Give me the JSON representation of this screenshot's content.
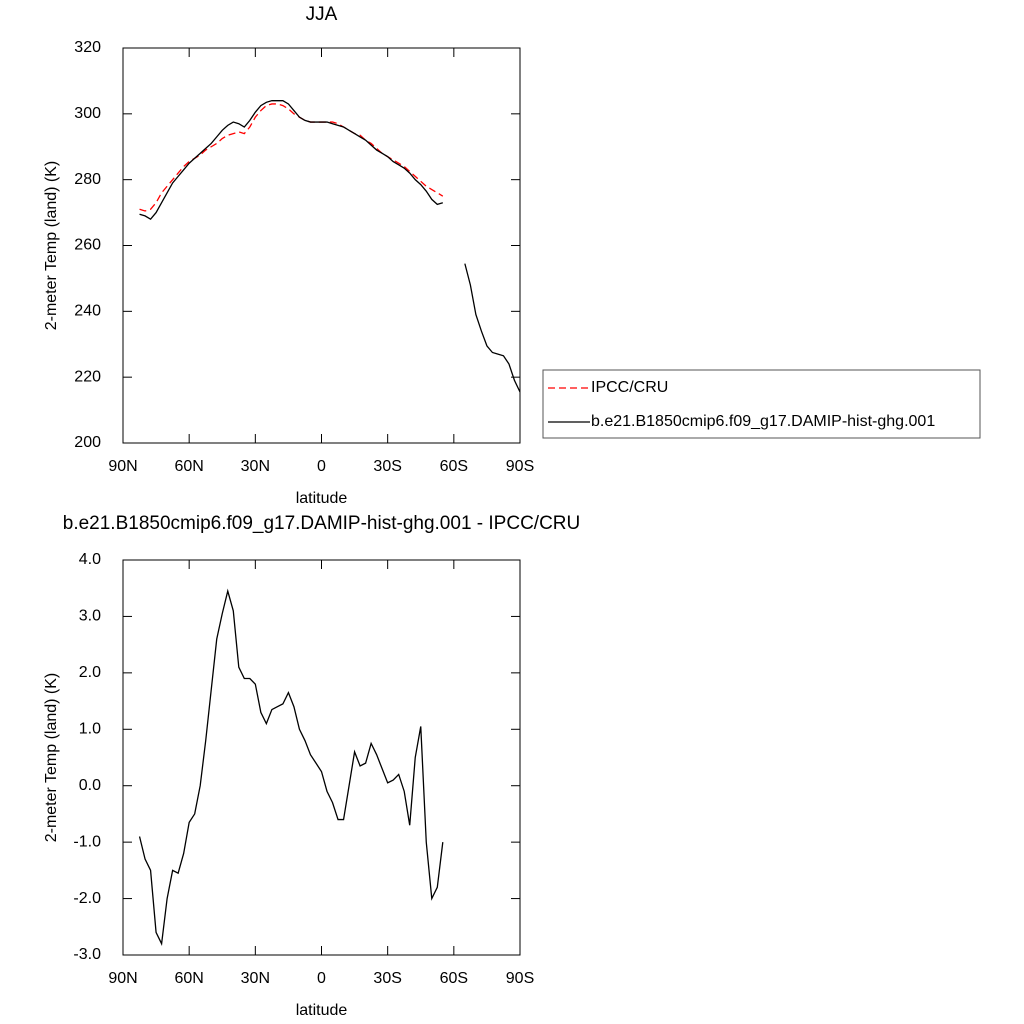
{
  "chart_data": [
    {
      "type": "line",
      "title": "JJA",
      "x_label": "latitude",
      "y_label": "2-meter Temp (land) (K)",
      "x": [
        82.5,
        80,
        77.5,
        75,
        72.5,
        70,
        67.5,
        65,
        62.5,
        60,
        57.5,
        55,
        52.5,
        50,
        47.5,
        45,
        42.5,
        40,
        37.5,
        35,
        32.5,
        30,
        27.5,
        25,
        22.5,
        20,
        17.5,
        15,
        12.5,
        10,
        7.5,
        5,
        2.5,
        0,
        -2.5,
        -5,
        -7.5,
        -10,
        -12.5,
        -15,
        -17.5,
        -20,
        -22.5,
        -25,
        -27.5,
        -30,
        -32.5,
        -35,
        -37.5,
        -40,
        -42.5,
        -45,
        -47.5,
        -50,
        -52.5,
        -55,
        -57.5,
        -60,
        -62.5,
        -65,
        -67.5,
        -70,
        -72.5,
        -75,
        -77.5,
        -80,
        -82.5,
        -85,
        -87.5,
        -90
      ],
      "series": [
        {
          "name": "IPCC/CRU",
          "color": "#ff0000",
          "style": "dashed",
          "values": [
            271,
            270.5,
            271,
            273,
            276,
            278,
            280,
            282,
            284,
            285.5,
            286.5,
            287.5,
            289,
            290,
            291,
            292.5,
            293.5,
            294,
            294.5,
            294,
            296,
            299,
            301,
            302.5,
            303,
            303,
            302.5,
            301.5,
            300,
            299,
            298,
            297.5,
            297.5,
            297.5,
            297.5,
            297.5,
            297,
            296,
            295,
            294,
            293.5,
            292,
            291,
            289.5,
            288,
            287,
            286,
            285,
            284,
            282.5,
            281,
            279.5,
            278,
            277,
            276,
            275,
            null,
            null,
            null,
            null,
            null,
            null,
            null,
            null,
            null,
            null,
            null,
            null,
            null,
            null
          ]
        },
        {
          "name": "b.e21.B1850cmip6.f09_g17.DAMIP-hist-ghg.001",
          "color": "#000000",
          "style": "solid",
          "values": [
            269.5,
            269,
            268,
            270,
            273,
            276,
            279,
            281,
            283,
            285,
            286.5,
            288,
            289.5,
            291,
            293,
            295,
            296.5,
            297.5,
            297,
            296,
            298,
            300.5,
            302.5,
            303.5,
            304,
            304,
            304,
            303,
            301,
            299,
            298,
            297.5,
            297.5,
            297.5,
            297.5,
            297,
            296.5,
            296,
            295,
            294,
            293,
            292,
            290.5,
            289,
            288,
            287,
            285.5,
            284.5,
            283.5,
            282,
            280,
            278.5,
            276.5,
            274,
            272.5,
            273,
            null,
            null,
            null,
            254.5,
            248,
            239,
            234,
            229.5,
            227.5,
            227,
            226.5,
            224,
            219,
            215.5
          ]
        }
      ],
      "xlim": [
        90,
        -90
      ],
      "xticks": [
        {
          "value": 90,
          "label": "90N"
        },
        {
          "value": 60,
          "label": "60N"
        },
        {
          "value": 30,
          "label": "30N"
        },
        0,
        {
          "value": -30,
          "label": "30S"
        },
        {
          "value": -60,
          "label": "60S"
        },
        {
          "value": -90,
          "label": "90S"
        }
      ],
      "ylim": [
        200,
        320
      ],
      "yticks": [
        200,
        220,
        240,
        260,
        280,
        300,
        320
      ],
      "legend": "outside-right"
    },
    {
      "type": "line",
      "title": "b.e21.B1850cmip6.f09_g17.DAMIP-hist-ghg.001 - IPCC/CRU",
      "x_label": "latitude",
      "y_label": "2-meter Temp (land) (K)",
      "x": [
        82.5,
        80,
        77.5,
        75,
        72.5,
        70,
        67.5,
        65,
        62.5,
        60,
        57.5,
        55,
        52.5,
        50,
        47.5,
        45,
        42.5,
        40,
        37.5,
        35,
        32.5,
        30,
        27.5,
        25,
        22.5,
        20,
        17.5,
        15,
        12.5,
        10,
        7.5,
        5,
        2.5,
        0,
        -2.5,
        -5,
        -7.5,
        -10,
        -12.5,
        -15,
        -17.5,
        -20,
        -22.5,
        -25,
        -27.5,
        -30,
        -32.5,
        -35,
        -37.5,
        -40,
        -42.5,
        -45,
        -47.5,
        -50,
        -52.5,
        -55
      ],
      "series": [
        {
          "color": "#000000",
          "style": "solid",
          "values": [
            -0.9,
            -1.3,
            -1.5,
            -2.6,
            -2.8,
            -2.0,
            -1.5,
            -1.55,
            -1.2,
            -0.65,
            -0.5,
            0.0,
            0.8,
            1.7,
            2.6,
            3.05,
            3.45,
            3.1,
            2.1,
            1.9,
            1.9,
            1.8,
            1.3,
            1.1,
            1.35,
            1.4,
            1.45,
            1.65,
            1.4,
            1.0,
            0.8,
            0.55,
            0.4,
            0.25,
            -0.1,
            -0.3,
            -0.6,
            -0.6,
            0.0,
            0.6,
            0.35,
            0.4,
            0.75,
            0.55,
            0.3,
            0.05,
            0.1,
            0.2,
            -0.1,
            -0.7,
            0.5,
            1.05,
            -1.0,
            -2.0,
            -1.8,
            -1.0
          ]
        }
      ],
      "xlim": [
        90,
        -90
      ],
      "xticks": [
        {
          "value": 90,
          "label": "90N"
        },
        {
          "value": 60,
          "label": "60N"
        },
        {
          "value": 30,
          "label": "30N"
        },
        0,
        {
          "value": -30,
          "label": "30S"
        },
        {
          "value": -60,
          "label": "60S"
        },
        {
          "value": -90,
          "label": "90S"
        }
      ],
      "ylim": [
        -3,
        4
      ],
      "yticks": [
        {
          "value": -3,
          "label": "-3.0"
        },
        {
          "value": -2,
          "label": "-2.0"
        },
        {
          "value": -1,
          "label": "-1.0"
        },
        {
          "value": 0,
          "label": "0.0"
        },
        {
          "value": 1,
          "label": "1.0"
        },
        {
          "value": 2,
          "label": "2.0"
        },
        {
          "value": 3,
          "label": "3.0"
        },
        {
          "value": 4,
          "label": "4.0"
        }
      ]
    }
  ]
}
